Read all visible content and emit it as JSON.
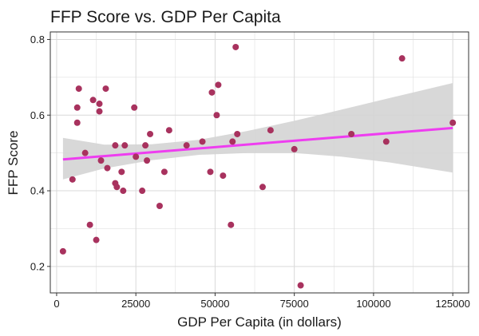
{
  "chart_data": {
    "type": "scatter",
    "title": "FFP Score vs. GDP Per Capita",
    "xlabel": "GDP Per Capita (in dollars)",
    "ylabel": "FFP Score",
    "xlim": [
      -2000,
      130000
    ],
    "ylim": [
      0.13,
      0.82
    ],
    "x_ticks": [
      0,
      25000,
      50000,
      75000,
      100000,
      125000
    ],
    "x_tick_labels": [
      "0",
      "25000",
      "50000",
      "75000",
      "100000",
      "125000"
    ],
    "y_ticks": [
      0.2,
      0.4,
      0.6,
      0.8
    ],
    "y_tick_labels": [
      "0.2",
      "0.4",
      "0.6",
      "0.8"
    ],
    "grid": true,
    "points": [
      {
        "x": 2000,
        "y": 0.24
      },
      {
        "x": 5000,
        "y": 0.43
      },
      {
        "x": 6500,
        "y": 0.62
      },
      {
        "x": 6500,
        "y": 0.58
      },
      {
        "x": 7000,
        "y": 0.67
      },
      {
        "x": 9000,
        "y": 0.5
      },
      {
        "x": 10500,
        "y": 0.31
      },
      {
        "x": 11500,
        "y": 0.64
      },
      {
        "x": 12500,
        "y": 0.27
      },
      {
        "x": 13500,
        "y": 0.61
      },
      {
        "x": 13500,
        "y": 0.63
      },
      {
        "x": 14000,
        "y": 0.48
      },
      {
        "x": 15500,
        "y": 0.67
      },
      {
        "x": 16000,
        "y": 0.46
      },
      {
        "x": 18500,
        "y": 0.52
      },
      {
        "x": 18500,
        "y": 0.42
      },
      {
        "x": 19000,
        "y": 0.41
      },
      {
        "x": 20500,
        "y": 0.45
      },
      {
        "x": 21000,
        "y": 0.4
      },
      {
        "x": 21500,
        "y": 0.52
      },
      {
        "x": 24500,
        "y": 0.62
      },
      {
        "x": 25000,
        "y": 0.49
      },
      {
        "x": 27000,
        "y": 0.4
      },
      {
        "x": 28000,
        "y": 0.52
      },
      {
        "x": 28500,
        "y": 0.48
      },
      {
        "x": 29500,
        "y": 0.55
      },
      {
        "x": 32500,
        "y": 0.36
      },
      {
        "x": 34000,
        "y": 0.45
      },
      {
        "x": 35500,
        "y": 0.56
      },
      {
        "x": 41000,
        "y": 0.52
      },
      {
        "x": 46000,
        "y": 0.53
      },
      {
        "x": 48500,
        "y": 0.45
      },
      {
        "x": 49000,
        "y": 0.66
      },
      {
        "x": 50500,
        "y": 0.6
      },
      {
        "x": 51000,
        "y": 0.68
      },
      {
        "x": 52500,
        "y": 0.44
      },
      {
        "x": 55000,
        "y": 0.31
      },
      {
        "x": 55500,
        "y": 0.53
      },
      {
        "x": 56500,
        "y": 0.78
      },
      {
        "x": 57000,
        "y": 0.55
      },
      {
        "x": 65000,
        "y": 0.41
      },
      {
        "x": 67500,
        "y": 0.56
      },
      {
        "x": 75000,
        "y": 0.51
      },
      {
        "x": 77000,
        "y": 0.15
      },
      {
        "x": 93000,
        "y": 0.55
      },
      {
        "x": 104000,
        "y": 0.53
      },
      {
        "x": 109000,
        "y": 0.75
      },
      {
        "x": 125000,
        "y": 0.58
      }
    ],
    "regression": {
      "x": [
        2000,
        125000
      ],
      "y": [
        0.483,
        0.566
      ]
    },
    "confidence_band": {
      "x": [
        2000,
        15000,
        30000,
        45000,
        60000,
        75000,
        90000,
        105000,
        125000
      ],
      "upper": [
        0.54,
        0.522,
        0.523,
        0.535,
        0.558,
        0.585,
        0.615,
        0.645,
        0.685
      ],
      "lower": [
        0.43,
        0.459,
        0.481,
        0.495,
        0.5,
        0.5,
        0.49,
        0.475,
        0.448
      ]
    },
    "colors": {
      "points": "#a8325e",
      "line": "#ee3df0",
      "band": "#d4d4d4",
      "grid": "#d9d9d9",
      "axis": "#333333"
    }
  }
}
